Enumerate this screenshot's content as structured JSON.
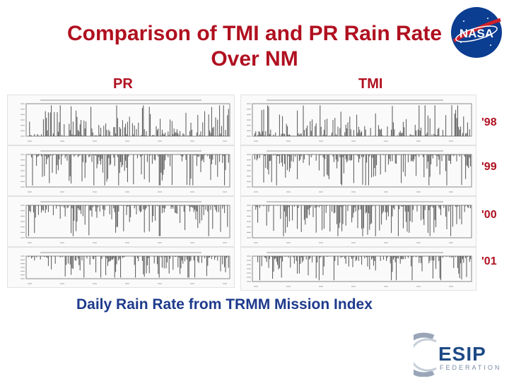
{
  "title_line1": "Comparison of TMI and PR Rain Rate",
  "title_line2": "Over NM",
  "pr_label": "PR",
  "tmi_label": "TMI",
  "years": [
    "'98",
    "'99",
    "'00",
    "'01"
  ],
  "caption": "Daily Rain Rate from TRMM Mission Index",
  "logo_nasa_text": "NASA",
  "logo_esip_text": "ESIP",
  "logo_esip_sub": "FEDERATION",
  "colors": {
    "title": "#b01020",
    "caption": "#1e3a8c",
    "nasa_blue": "#0b3d91",
    "nasa_red": "#d0202b"
  }
}
